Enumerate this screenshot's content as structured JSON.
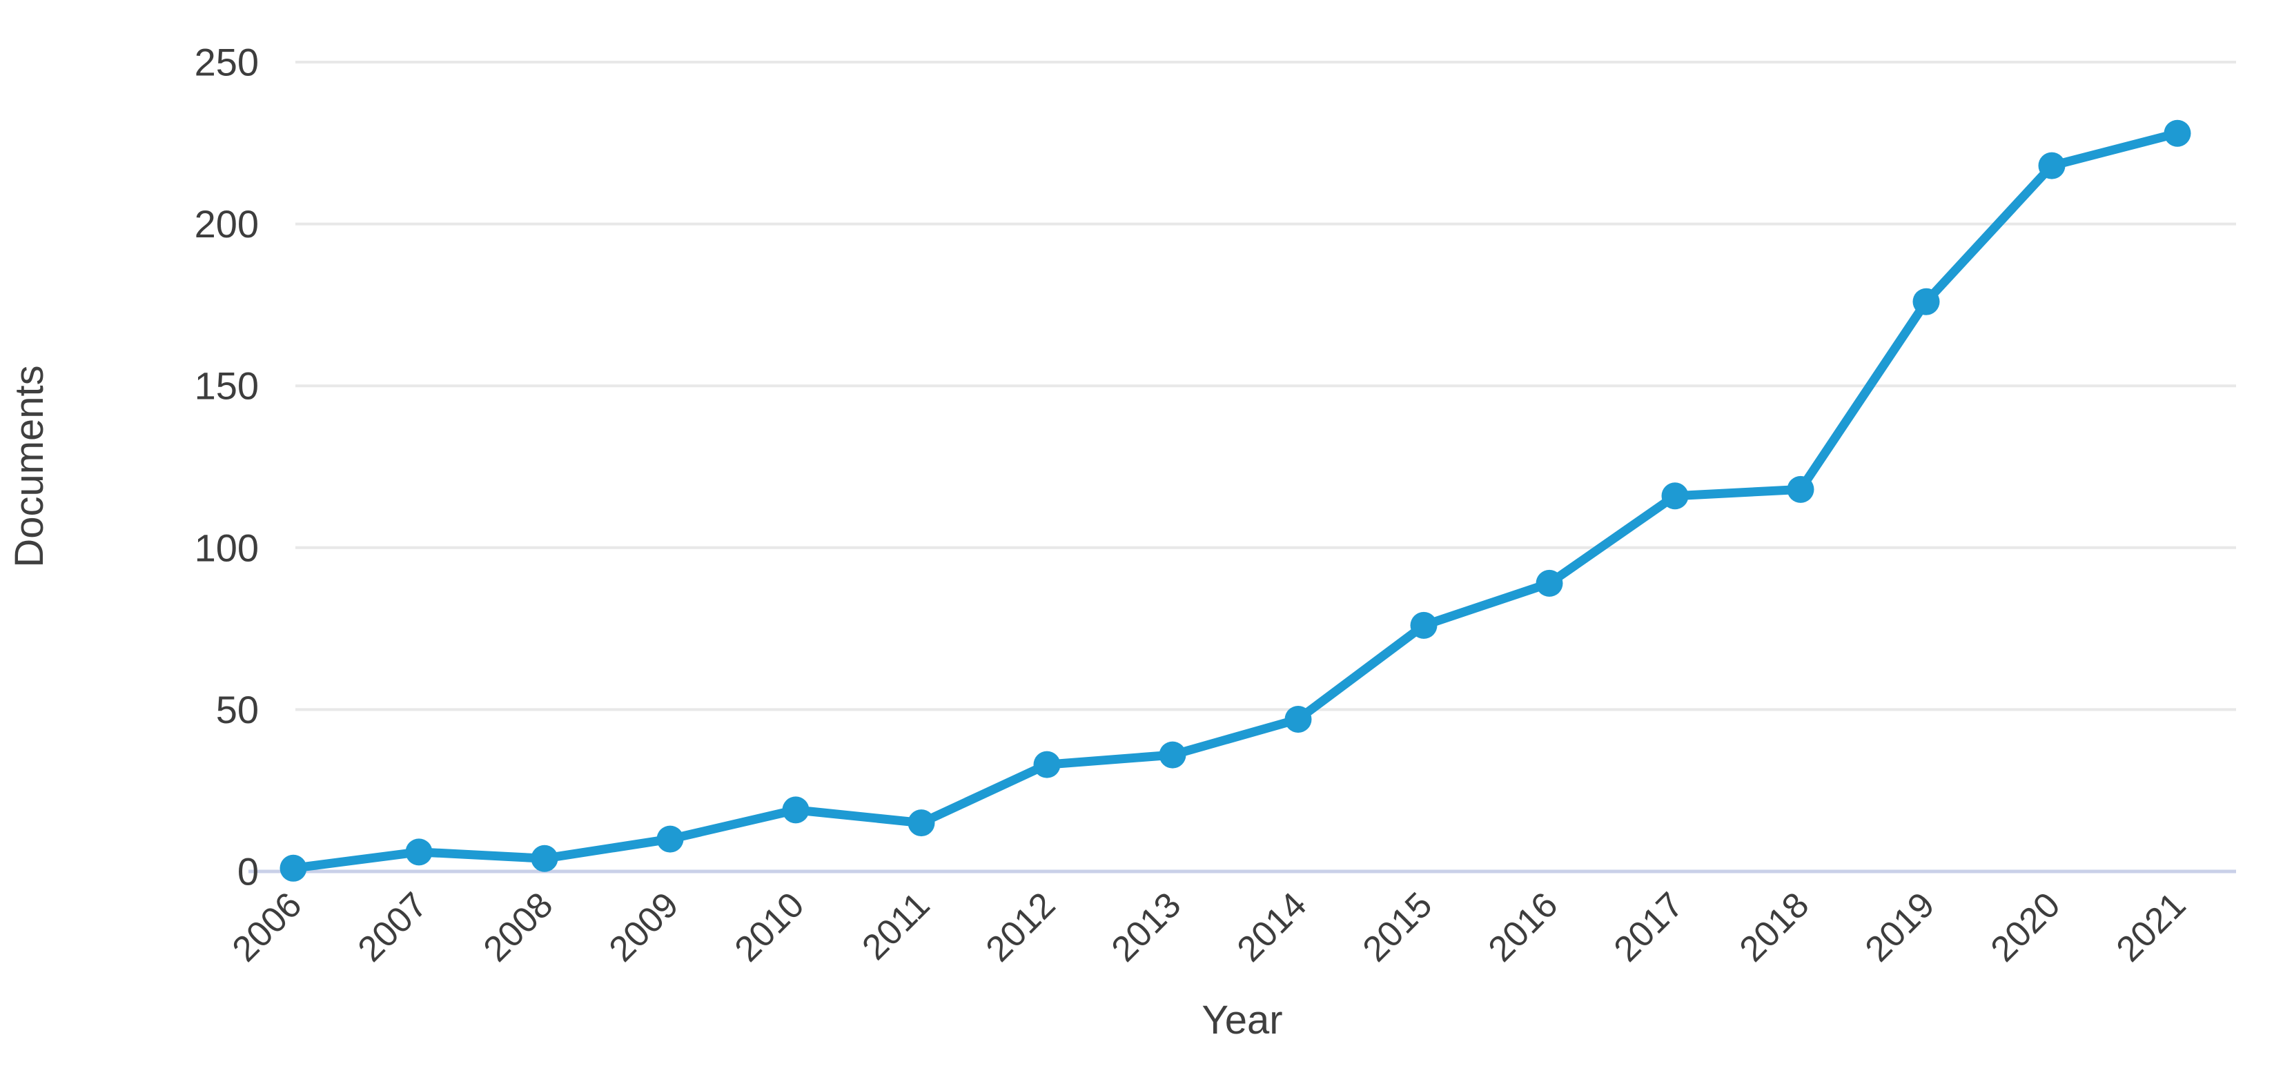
{
  "chart_data": {
    "type": "line",
    "title": "",
    "xlabel": "Year",
    "ylabel": "Documents",
    "categories": [
      "2006",
      "2007",
      "2008",
      "2009",
      "2010",
      "2011",
      "2012",
      "2013",
      "2014",
      "2015",
      "2016",
      "2017",
      "2018",
      "2019",
      "2020",
      "2021"
    ],
    "series": [
      {
        "name": "Documents",
        "values": [
          1,
          6,
          4,
          10,
          19,
          15,
          33,
          36,
          47,
          76,
          89,
          116,
          118,
          176,
          218,
          228
        ]
      }
    ],
    "ylim": [
      0,
      250
    ],
    "yticks": [
      0,
      50,
      100,
      150,
      200,
      250
    ],
    "xlim_categories": [
      "2006",
      "2021"
    ],
    "grid": "horizontal",
    "legend_position": "none",
    "marker": "circle",
    "colors": {
      "line": "#1e9ad3",
      "marker": "#1e9ad3",
      "gridline": "#e8e8e8",
      "zero_axis_line": "#c9d0e8",
      "tick_text": "#3d3d3d",
      "axis_title_text": "#3f3f3f",
      "background": "#ffffff"
    }
  }
}
